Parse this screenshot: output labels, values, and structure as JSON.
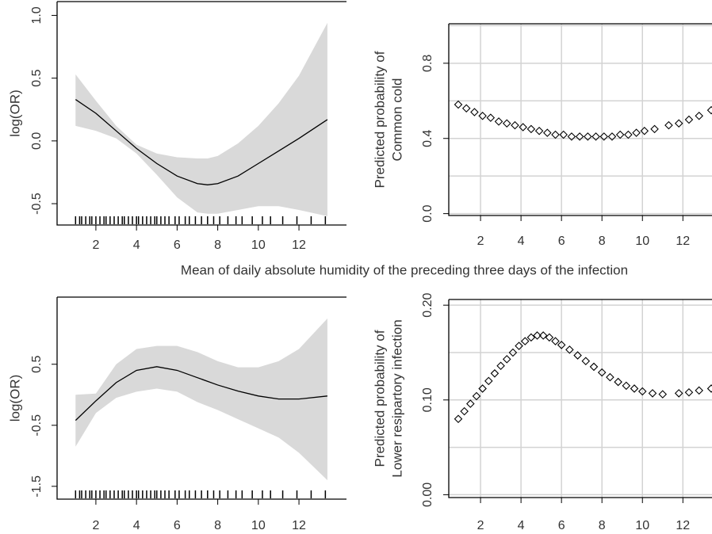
{
  "xlabel": "Mean of daily absolute humidity  of the preceding three days of the infection",
  "chart_data": [
    {
      "type": "line",
      "ylabel": [
        "log(OR)"
      ],
      "x": [
        1,
        2,
        3,
        4,
        5,
        6,
        7,
        7.5,
        8,
        9,
        10,
        11,
        12,
        13.4
      ],
      "values": [
        0.33,
        0.22,
        0.08,
        -0.06,
        -0.18,
        -0.28,
        -0.34,
        -0.35,
        -0.34,
        -0.28,
        -0.18,
        -0.08,
        0.02,
        0.17
      ],
      "upper": [
        0.53,
        0.32,
        0.12,
        -0.03,
        -0.1,
        -0.13,
        -0.14,
        -0.14,
        -0.12,
        -0.02,
        0.12,
        0.3,
        0.52,
        0.94
      ],
      "lower": [
        0.12,
        0.08,
        0.02,
        -0.1,
        -0.27,
        -0.45,
        -0.57,
        -0.58,
        -0.58,
        -0.55,
        -0.52,
        -0.52,
        -0.55,
        -0.6
      ],
      "rug": [
        1.0,
        1.2,
        1.3,
        1.5,
        1.7,
        1.8,
        2.0,
        2.2,
        2.4,
        2.5,
        2.7,
        2.9,
        3.1,
        3.3,
        3.4,
        3.6,
        3.8,
        4.0,
        4.1,
        4.3,
        4.5,
        4.7,
        4.9,
        5.0,
        5.2,
        5.4,
        5.6,
        5.9,
        6.1,
        6.4,
        6.6,
        6.9,
        7.2,
        7.5,
        7.8,
        8.1,
        8.5,
        8.9,
        9.2,
        9.7,
        10.2,
        10.6,
        11.2,
        11.9,
        12.6,
        13.3
      ],
      "color": "#000000",
      "band_color": "#d9d9d9",
      "xlim": [
        0.09,
        14.34
      ],
      "ylim": [
        -0.67,
        1.11
      ],
      "xticks": [
        2,
        4,
        6,
        8,
        10,
        12
      ],
      "yticks": [
        -0.5,
        {
          "value": 0,
          "label": "0.0"
        },
        0.5,
        {
          "value": 1,
          "label": "1.0"
        }
      ],
      "grid": false
    },
    {
      "type": "scatter",
      "ylabel": [
        "Predicted probability of",
        "Common cold"
      ],
      "x": [
        0.9,
        1.3,
        1.7,
        2.1,
        2.5,
        2.9,
        3.3,
        3.7,
        4.1,
        4.5,
        4.9,
        5.3,
        5.7,
        6.1,
        6.5,
        6.9,
        7.3,
        7.7,
        8.1,
        8.5,
        8.9,
        9.3,
        9.7,
        10.1,
        10.6,
        11.3,
        11.8,
        12.3,
        12.8,
        13.4
      ],
      "values": [
        0.58,
        0.56,
        0.54,
        0.52,
        0.51,
        0.49,
        0.48,
        0.47,
        0.46,
        0.45,
        0.44,
        0.43,
        0.42,
        0.42,
        0.41,
        0.41,
        0.41,
        0.41,
        0.41,
        0.41,
        0.42,
        0.42,
        0.43,
        0.44,
        0.45,
        0.47,
        0.48,
        0.5,
        0.52,
        0.55
      ],
      "color": "#000000",
      "xlim": [
        0.43,
        14.3
      ],
      "ylim": [
        -0.01,
        1.01
      ],
      "xticks": [
        2,
        4,
        6,
        8,
        10,
        12
      ],
      "yticks": [
        {
          "value": 0,
          "label": "0.0"
        },
        0.4,
        0.8
      ],
      "ygrid": [
        0,
        0.2,
        0.4,
        0.6,
        0.8,
        1.0
      ],
      "grid": true
    },
    {
      "type": "line",
      "ylabel": [
        "log(OR)"
      ],
      "x": [
        1,
        2,
        3,
        4,
        5,
        6,
        7,
        8,
        9,
        10,
        11,
        12,
        13.4
      ],
      "values": [
        -0.42,
        -0.1,
        0.2,
        0.4,
        0.46,
        0.4,
        0.28,
        0.16,
        0.06,
        -0.02,
        -0.07,
        -0.07,
        -0.02
      ],
      "upper": [
        0.0,
        0.02,
        0.5,
        0.75,
        0.8,
        0.8,
        0.7,
        0.55,
        0.45,
        0.45,
        0.55,
        0.75,
        1.25
      ],
      "lower": [
        -0.85,
        -0.3,
        -0.05,
        0.05,
        0.1,
        0.05,
        -0.12,
        -0.25,
        -0.4,
        -0.55,
        -0.7,
        -0.95,
        -1.4
      ],
      "rug": [
        1.0,
        1.2,
        1.3,
        1.5,
        1.7,
        1.8,
        2.0,
        2.2,
        2.4,
        2.5,
        2.7,
        2.9,
        3.1,
        3.3,
        3.4,
        3.6,
        3.8,
        4.0,
        4.1,
        4.3,
        4.5,
        4.7,
        4.9,
        5.0,
        5.2,
        5.4,
        5.6,
        5.9,
        6.1,
        6.4,
        6.6,
        6.9,
        7.2,
        7.5,
        7.8,
        8.1,
        8.5,
        8.9,
        9.2,
        9.7,
        10.2,
        10.6,
        11.2,
        11.9,
        12.6,
        13.3
      ],
      "color": "#000000",
      "band_color": "#d9d9d9",
      "xlim": [
        0.09,
        14.34
      ],
      "ylim": [
        -1.71,
        1.6
      ],
      "xticks": [
        2,
        4,
        6,
        8,
        10,
        12
      ],
      "yticks": [
        -1.5,
        -0.5,
        0.5
      ],
      "grid": false
    },
    {
      "type": "scatter",
      "ylabel": [
        "Predicted probability of",
        "Lower resipartory infection"
      ],
      "x": [
        0.9,
        1.2,
        1.5,
        1.8,
        2.1,
        2.4,
        2.7,
        3.0,
        3.3,
        3.6,
        3.9,
        4.2,
        4.5,
        4.8,
        5.1,
        5.4,
        5.7,
        6.0,
        6.4,
        6.8,
        7.2,
        7.6,
        8.0,
        8.4,
        8.8,
        9.2,
        9.6,
        10.0,
        10.5,
        11.0,
        11.8,
        12.3,
        12.8,
        13.4
      ],
      "values": [
        0.08,
        0.088,
        0.096,
        0.104,
        0.112,
        0.12,
        0.128,
        0.136,
        0.143,
        0.15,
        0.157,
        0.162,
        0.166,
        0.168,
        0.168,
        0.166,
        0.162,
        0.158,
        0.153,
        0.147,
        0.141,
        0.135,
        0.129,
        0.124,
        0.119,
        0.115,
        0.112,
        0.109,
        0.107,
        0.106,
        0.107,
        0.108,
        0.11,
        0.112
      ],
      "color": "#000000",
      "xlim": [
        0.43,
        14.3
      ],
      "ylim": [
        -0.003,
        0.206
      ],
      "xticks": [
        2,
        4,
        6,
        8,
        10,
        12
      ],
      "yticks": [
        {
          "value": 0,
          "label": "0.00"
        },
        {
          "value": 0.1,
          "label": "0.10"
        },
        {
          "value": 0.2,
          "label": "0.20"
        }
      ],
      "ygrid": [
        0,
        0.05,
        0.1,
        0.15,
        0.2
      ],
      "grid": true
    }
  ]
}
